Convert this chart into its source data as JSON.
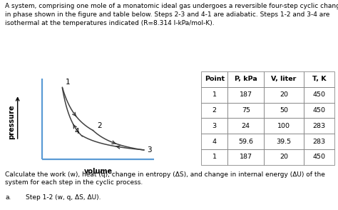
{
  "title_line1": "A system, comprising one mole of a monatomic ideal gas undergoes a reversible four-step cyclic change",
  "title_line2": "in phase shown in the figure and table below. Steps 2-3 and 4-1 are adiabatic. Steps 1-2 and 3-4 are",
  "title_line3": "isothermal at the temperatures indicated (R=8.314 l-kPa/mol-K).",
  "footer_line1": "Calculate the work (w), heat (q), change in entropy (ΔS), and change in internal energy (ΔU) of the",
  "footer_line2": "system for each step in the cyclic process.",
  "step_label": "a.",
  "step_text": "Step 1-2 (w, q, ΔS, ΔU).",
  "points": {
    "1": {
      "V": 20,
      "P": 187
    },
    "2": {
      "V": 50,
      "P": 75
    },
    "3": {
      "V": 100,
      "P": 24
    },
    "4": {
      "V": 39.5,
      "P": 59.6
    }
  },
  "table_data": [
    [
      "Point",
      "P, kPa",
      "V, liter",
      "T, K"
    ],
    [
      "1",
      "187",
      "20",
      "450"
    ],
    [
      "2",
      "75",
      "50",
      "450"
    ],
    [
      "3",
      "24",
      "100",
      "283"
    ],
    [
      "4",
      "59.6",
      "39.5",
      "283"
    ],
    [
      "1",
      "187",
      "20",
      "450"
    ]
  ],
  "axis_color": "#5B9BD5",
  "curve_color": "#404040",
  "title_fontsize": 6.5,
  "body_fontsize": 6.5,
  "graph_label_fontsize": 7.0,
  "point_label_fontsize": 7.5,
  "table_fontsize": 6.8
}
